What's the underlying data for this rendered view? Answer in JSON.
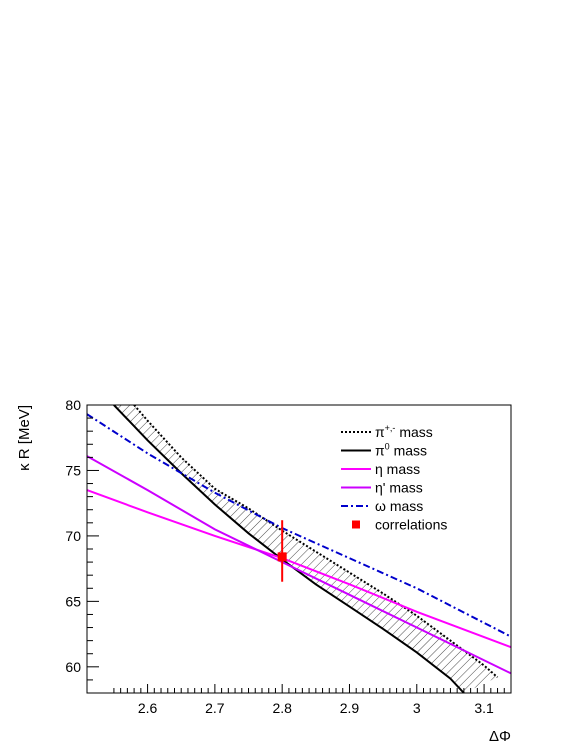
{
  "chart_data": {
    "type": "line",
    "title": "",
    "xlabel": "ΔΦ",
    "ylabel": "κ R [MeV]",
    "xlim": [
      2.51,
      3.14
    ],
    "ylim": [
      58,
      80
    ],
    "x_ticks": [
      2.6,
      2.7,
      2.8,
      2.9,
      3.0,
      3.1
    ],
    "x_tick_labels": [
      "2.6",
      "2.7",
      "2.8",
      "2.9",
      "3",
      "3.1"
    ],
    "y_ticks": [
      60,
      65,
      70,
      75,
      80
    ],
    "y_tick_labels": [
      "60",
      "65",
      "70",
      "75",
      "80"
    ],
    "grid": false,
    "legend_position": "top-right",
    "legend": [
      {
        "key": "pi_charged",
        "base": "π",
        "sup": "+,-",
        "rest": " mass"
      },
      {
        "key": "pi0",
        "base": "π",
        "sup": "0",
        "rest": " mass"
      },
      {
        "key": "eta",
        "base": "η",
        "sup": "",
        "rest": " mass"
      },
      {
        "key": "eta_prime",
        "base": "η",
        "sup": "",
        "rest": "' mass"
      },
      {
        "key": "omega",
        "base": "ω",
        "sup": "",
        "rest": " mass"
      },
      {
        "key": "correlations",
        "base": "correlations",
        "sup": "",
        "rest": ""
      }
    ],
    "series": [
      {
        "key": "pi_charged",
        "style": "dotted",
        "color": "#000000",
        "x": [
          2.58,
          2.6,
          2.65,
          2.7,
          2.75,
          2.8,
          2.85,
          2.9,
          2.95,
          3.0,
          3.05,
          3.1,
          3.12
        ],
        "y": [
          80.0,
          78.8,
          76.0,
          73.6,
          72.1,
          70.4,
          68.8,
          67.2,
          65.6,
          63.9,
          62.0,
          60.1,
          59.2
        ]
      },
      {
        "key": "pi0",
        "style": "solid",
        "color": "#000000",
        "x": [
          2.55,
          2.6,
          2.65,
          2.7,
          2.75,
          2.8,
          2.85,
          2.9,
          2.95,
          3.0,
          3.05,
          3.07
        ],
        "y": [
          80.0,
          77.3,
          74.8,
          72.4,
          70.2,
          68.2,
          66.3,
          64.6,
          62.9,
          61.1,
          59.1,
          58.0
        ]
      },
      {
        "key": "eta",
        "style": "solid",
        "color": "#ff00ff",
        "x": [
          2.51,
          2.6,
          2.7,
          2.8,
          2.9,
          3.0,
          3.14
        ],
        "y": [
          73.5,
          71.8,
          70.0,
          68.3,
          66.3,
          64.2,
          61.5
        ]
      },
      {
        "key": "eta_prime",
        "style": "solid",
        "color": "#cc00ff",
        "x": [
          2.51,
          2.6,
          2.7,
          2.8,
          2.9,
          3.0,
          3.14
        ],
        "y": [
          76.1,
          73.5,
          70.5,
          68.0,
          65.5,
          63.0,
          59.5
        ]
      },
      {
        "key": "omega",
        "style": "dashdot",
        "color": "#0000cc",
        "x": [
          2.51,
          2.6,
          2.7,
          2.8,
          2.9,
          3.0,
          3.14
        ],
        "y": [
          79.3,
          76.3,
          73.3,
          70.6,
          68.3,
          66.0,
          62.3
        ]
      }
    ],
    "points": [
      {
        "key": "correlations",
        "x": 2.8,
        "y": 68.4,
        "y_err": [
          2.8,
          1.9
        ],
        "color": "#ff0000"
      }
    ],
    "hatched_band": {
      "between": [
        "pi_charged",
        "pi0"
      ],
      "color": "#000000"
    }
  }
}
